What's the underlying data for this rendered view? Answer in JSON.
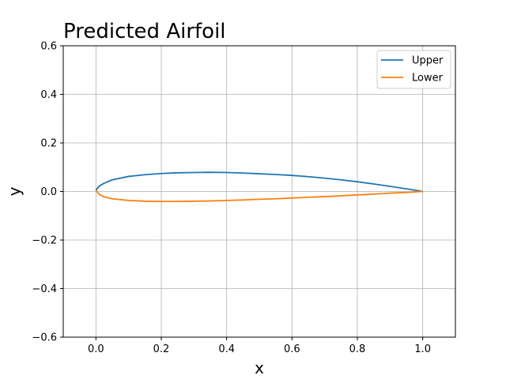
{
  "chart_data": {
    "type": "line",
    "title": "Predicted Airfoil",
    "xlabel": "x",
    "ylabel": "y",
    "xlim": [
      -0.1,
      1.1
    ],
    "ylim": [
      -0.6,
      0.6
    ],
    "xticks": [
      0.0,
      0.2,
      0.4,
      0.6,
      0.8,
      1.0
    ],
    "xtick_labels": [
      "0.0",
      "0.2",
      "0.4",
      "0.6",
      "0.8",
      "1.0"
    ],
    "yticks": [
      -0.6,
      -0.4,
      -0.2,
      0.0,
      0.2,
      0.4,
      0.6
    ],
    "ytick_labels": [
      "−0.6",
      "−0.4",
      "−0.2",
      "0.0",
      "0.2",
      "0.4",
      "0.6"
    ],
    "grid": true,
    "legend_position": "top-right",
    "series": [
      {
        "name": "Upper",
        "color": "#1f77b4",
        "x": [
          0.0,
          0.01,
          0.025,
          0.05,
          0.1,
          0.15,
          0.2,
          0.25,
          0.3,
          0.35,
          0.4,
          0.45,
          0.5,
          0.55,
          0.6,
          0.65,
          0.7,
          0.75,
          0.8,
          0.85,
          0.9,
          0.95,
          1.0
        ],
        "y": [
          0.005,
          0.022,
          0.034,
          0.048,
          0.062,
          0.069,
          0.074,
          0.077,
          0.078,
          0.079,
          0.078,
          0.076,
          0.073,
          0.07,
          0.066,
          0.061,
          0.055,
          0.048,
          0.04,
          0.031,
          0.021,
          0.011,
          0.0
        ]
      },
      {
        "name": "Lower",
        "color": "#ff7f0e",
        "x": [
          0.0,
          0.01,
          0.025,
          0.05,
          0.1,
          0.15,
          0.2,
          0.25,
          0.3,
          0.35,
          0.4,
          0.45,
          0.5,
          0.55,
          0.6,
          0.65,
          0.7,
          0.75,
          0.8,
          0.85,
          0.9,
          0.95,
          1.0
        ],
        "y": [
          0.005,
          -0.012,
          -0.022,
          -0.03,
          -0.037,
          -0.04,
          -0.041,
          -0.041,
          -0.04,
          -0.039,
          -0.037,
          -0.035,
          -0.032,
          -0.03,
          -0.027,
          -0.024,
          -0.021,
          -0.018,
          -0.014,
          -0.011,
          -0.007,
          -0.004,
          0.0
        ]
      }
    ]
  }
}
